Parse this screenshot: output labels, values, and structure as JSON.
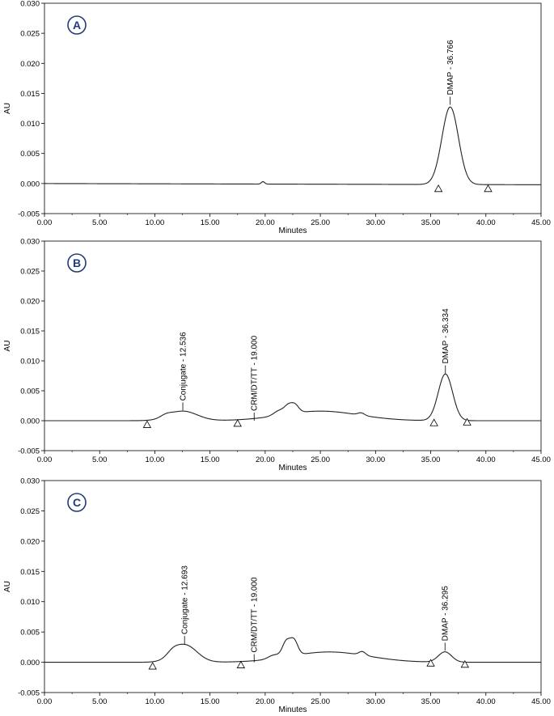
{
  "chart_data": [
    {
      "type": "line",
      "panel_label": "A",
      "xlabel": "Minutes",
      "ylabel": "AU",
      "xlim": [
        0,
        45
      ],
      "ylim": [
        -0.005,
        0.03
      ],
      "xticks": [
        "0.00",
        "5.00",
        "10.00",
        "15.00",
        "20.00",
        "25.00",
        "30.00",
        "35.00",
        "40.00",
        "45.00"
      ],
      "yticks": [
        "-0.005",
        "0.000",
        "0.005",
        "0.010",
        "0.015",
        "0.020",
        "0.025",
        "0.030"
      ],
      "baseline": [
        [
          0,
          0.0
        ],
        [
          45,
          -0.0002
        ]
      ],
      "peaks": [
        {
          "rt": 19.8,
          "height": 0.0004,
          "width": 0.15
        },
        {
          "rt": 36.766,
          "height": 0.0129,
          "width": 0.75
        }
      ],
      "annotations": [
        {
          "text": "DMAP - 36.766",
          "x": 36.766,
          "y": 0.0131
        }
      ],
      "markers": [
        [
          35.7,
          -0.0008
        ],
        [
          40.2,
          -0.0008
        ]
      ]
    },
    {
      "type": "line",
      "panel_label": "B",
      "xlabel": "Minutes",
      "ylabel": "AU",
      "xlim": [
        0,
        45
      ],
      "ylim": [
        -0.005,
        0.03
      ],
      "xticks": [
        "0.00",
        "5.00",
        "10.00",
        "15.00",
        "20.00",
        "25.00",
        "30.00",
        "35.00",
        "40.00",
        "45.00"
      ],
      "yticks": [
        "-0.005",
        "0.000",
        "0.005",
        "0.010",
        "0.015",
        "0.020",
        "0.025",
        "0.030"
      ],
      "baseline": [
        [
          0,
          0.0
        ],
        [
          45,
          0.0
        ]
      ],
      "peaks": [
        {
          "rt": 12.536,
          "height": 0.0016,
          "width": 1.3
        },
        {
          "rt": 11.0,
          "height": 0.0004,
          "width": 0.5
        },
        {
          "rt": 25.0,
          "height": 0.0016,
          "width": 3.5
        },
        {
          "rt": 21.3,
          "height": 0.0008,
          "width": 0.5
        },
        {
          "rt": 22.1,
          "height": 0.0012,
          "width": 0.35
        },
        {
          "rt": 22.7,
          "height": 0.0013,
          "width": 0.35
        },
        {
          "rt": 28.7,
          "height": 0.0004,
          "width": 0.3
        },
        {
          "rt": 36.334,
          "height": 0.0078,
          "width": 0.65
        }
      ],
      "annotations": [
        {
          "text": "Conjugate - 12.536",
          "x": 12.536,
          "y": 0.0017
        },
        {
          "text": "CRM/DT/TT - 19.000",
          "x": 19.0,
          "y": 0.0
        },
        {
          "text": "DMAP - 36.334",
          "x": 36.334,
          "y": 0.0079
        }
      ],
      "markers": [
        [
          9.3,
          -0.0006
        ],
        [
          17.5,
          -0.0004
        ],
        [
          35.3,
          -0.0003
        ],
        [
          38.3,
          -0.0002
        ]
      ]
    },
    {
      "type": "line",
      "panel_label": "C",
      "xlabel": "Minutes",
      "ylabel": "AU",
      "xlim": [
        0,
        45
      ],
      "ylim": [
        -0.005,
        0.03
      ],
      "xticks": [
        "0.00",
        "5.00",
        "10.00",
        "15.00",
        "20.00",
        "25.00",
        "30.00",
        "35.00",
        "40.00",
        "45.00"
      ],
      "yticks": [
        "-0.005",
        "0.000",
        "0.005",
        "0.010",
        "0.015",
        "0.020",
        "0.025",
        "0.030"
      ],
      "baseline": [
        [
          0,
          0.0
        ],
        [
          45,
          0.0
        ]
      ],
      "peaks": [
        {
          "rt": 12.693,
          "height": 0.0029,
          "width": 1.1
        },
        {
          "rt": 11.6,
          "height": 0.0006,
          "width": 0.5
        },
        {
          "rt": 25.8,
          "height": 0.0017,
          "width": 3.5
        },
        {
          "rt": 20.8,
          "height": 0.0006,
          "width": 0.5
        },
        {
          "rt": 21.9,
          "height": 0.0024,
          "width": 0.35
        },
        {
          "rt": 22.6,
          "height": 0.0025,
          "width": 0.35
        },
        {
          "rt": 28.8,
          "height": 0.0006,
          "width": 0.3
        },
        {
          "rt": 36.295,
          "height": 0.0017,
          "width": 0.6
        }
      ],
      "annotations": [
        {
          "text": "Conjugate - 12.693",
          "x": 12.693,
          "y": 0.003
        },
        {
          "text": "CRM/DT/TT - 19.000",
          "x": 19.0,
          "y": 0.0
        },
        {
          "text": "DMAP - 36.295",
          "x": 36.295,
          "y": 0.0019
        }
      ],
      "markers": [
        [
          9.8,
          -0.0006
        ],
        [
          17.8,
          -0.0004
        ],
        [
          35.0,
          -0.0001
        ],
        [
          38.1,
          -0.0003
        ]
      ]
    }
  ]
}
